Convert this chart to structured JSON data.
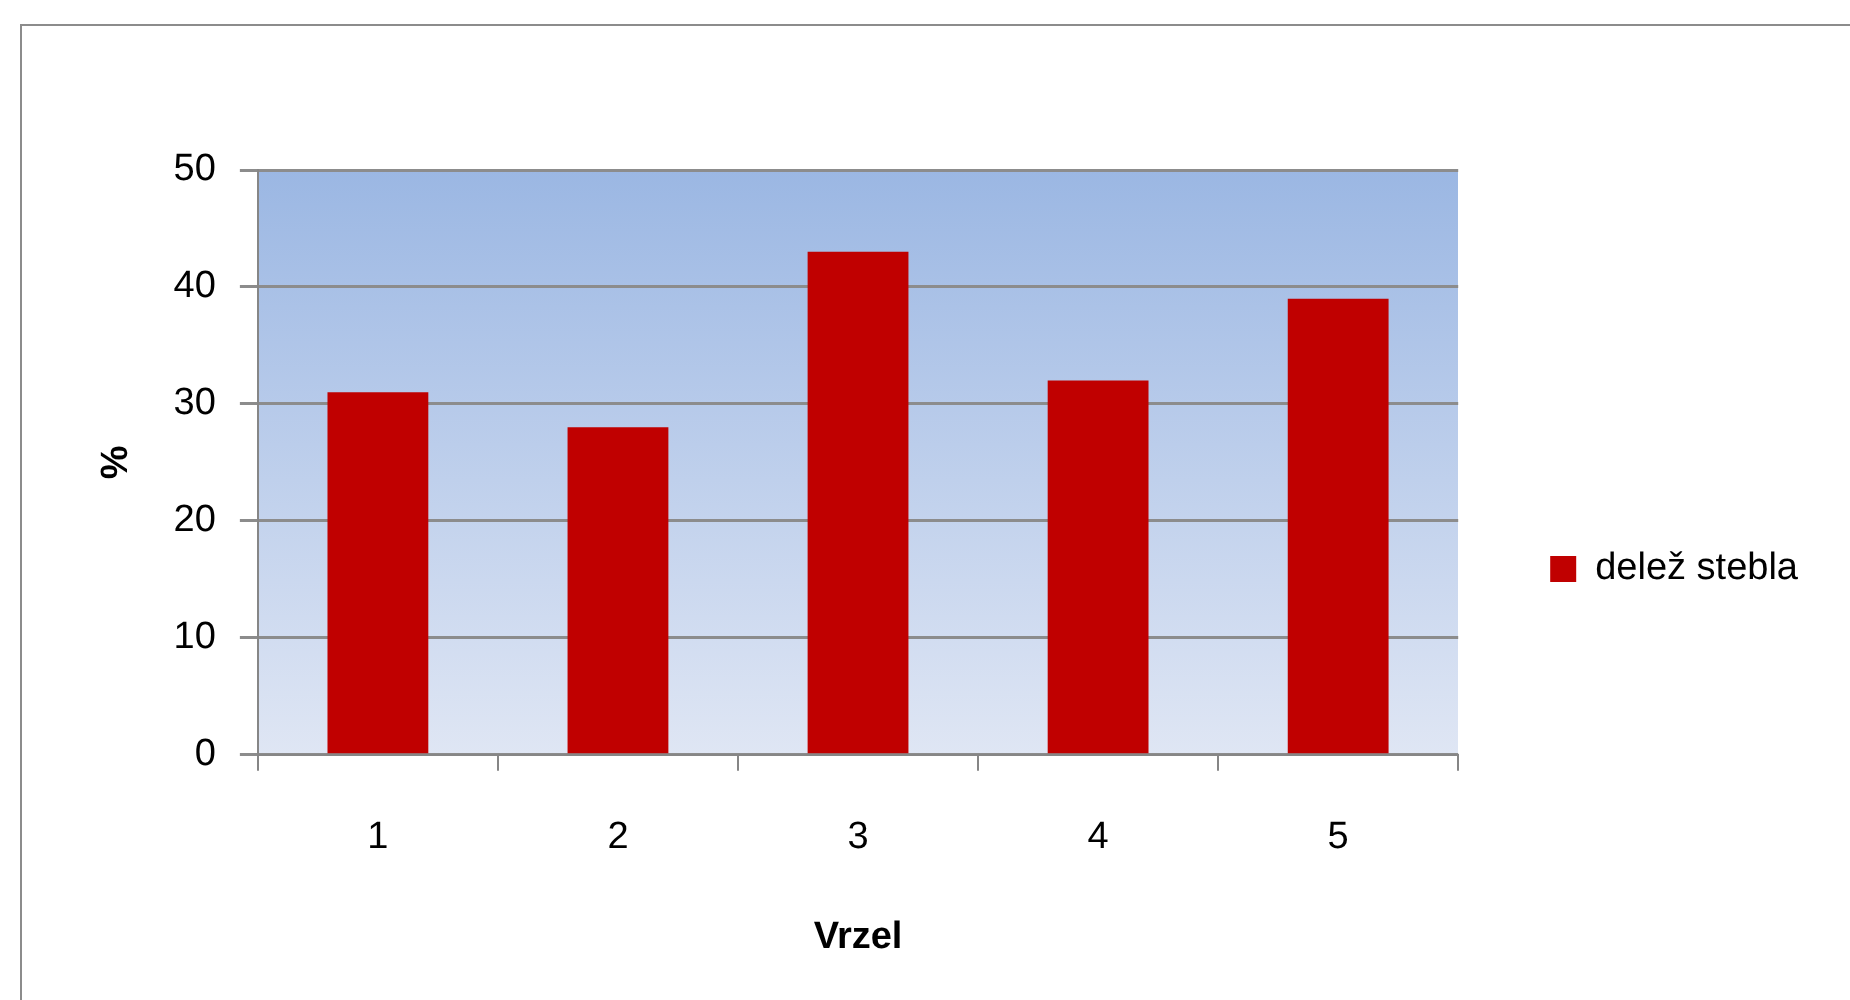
{
  "chart_data": {
    "type": "bar",
    "xlabel": "Vrzel",
    "ylabel": "%",
    "categories": [
      "1",
      "2",
      "3",
      "4",
      "5"
    ],
    "series": [
      {
        "name": "delež stebla",
        "color": "#c00000",
        "values": [
          31,
          28,
          43,
          32,
          39
        ]
      }
    ],
    "ylim": [
      0,
      50
    ],
    "yticks": [
      0,
      10,
      20,
      30,
      40,
      50
    ],
    "grid": "y",
    "legend": "right"
  }
}
